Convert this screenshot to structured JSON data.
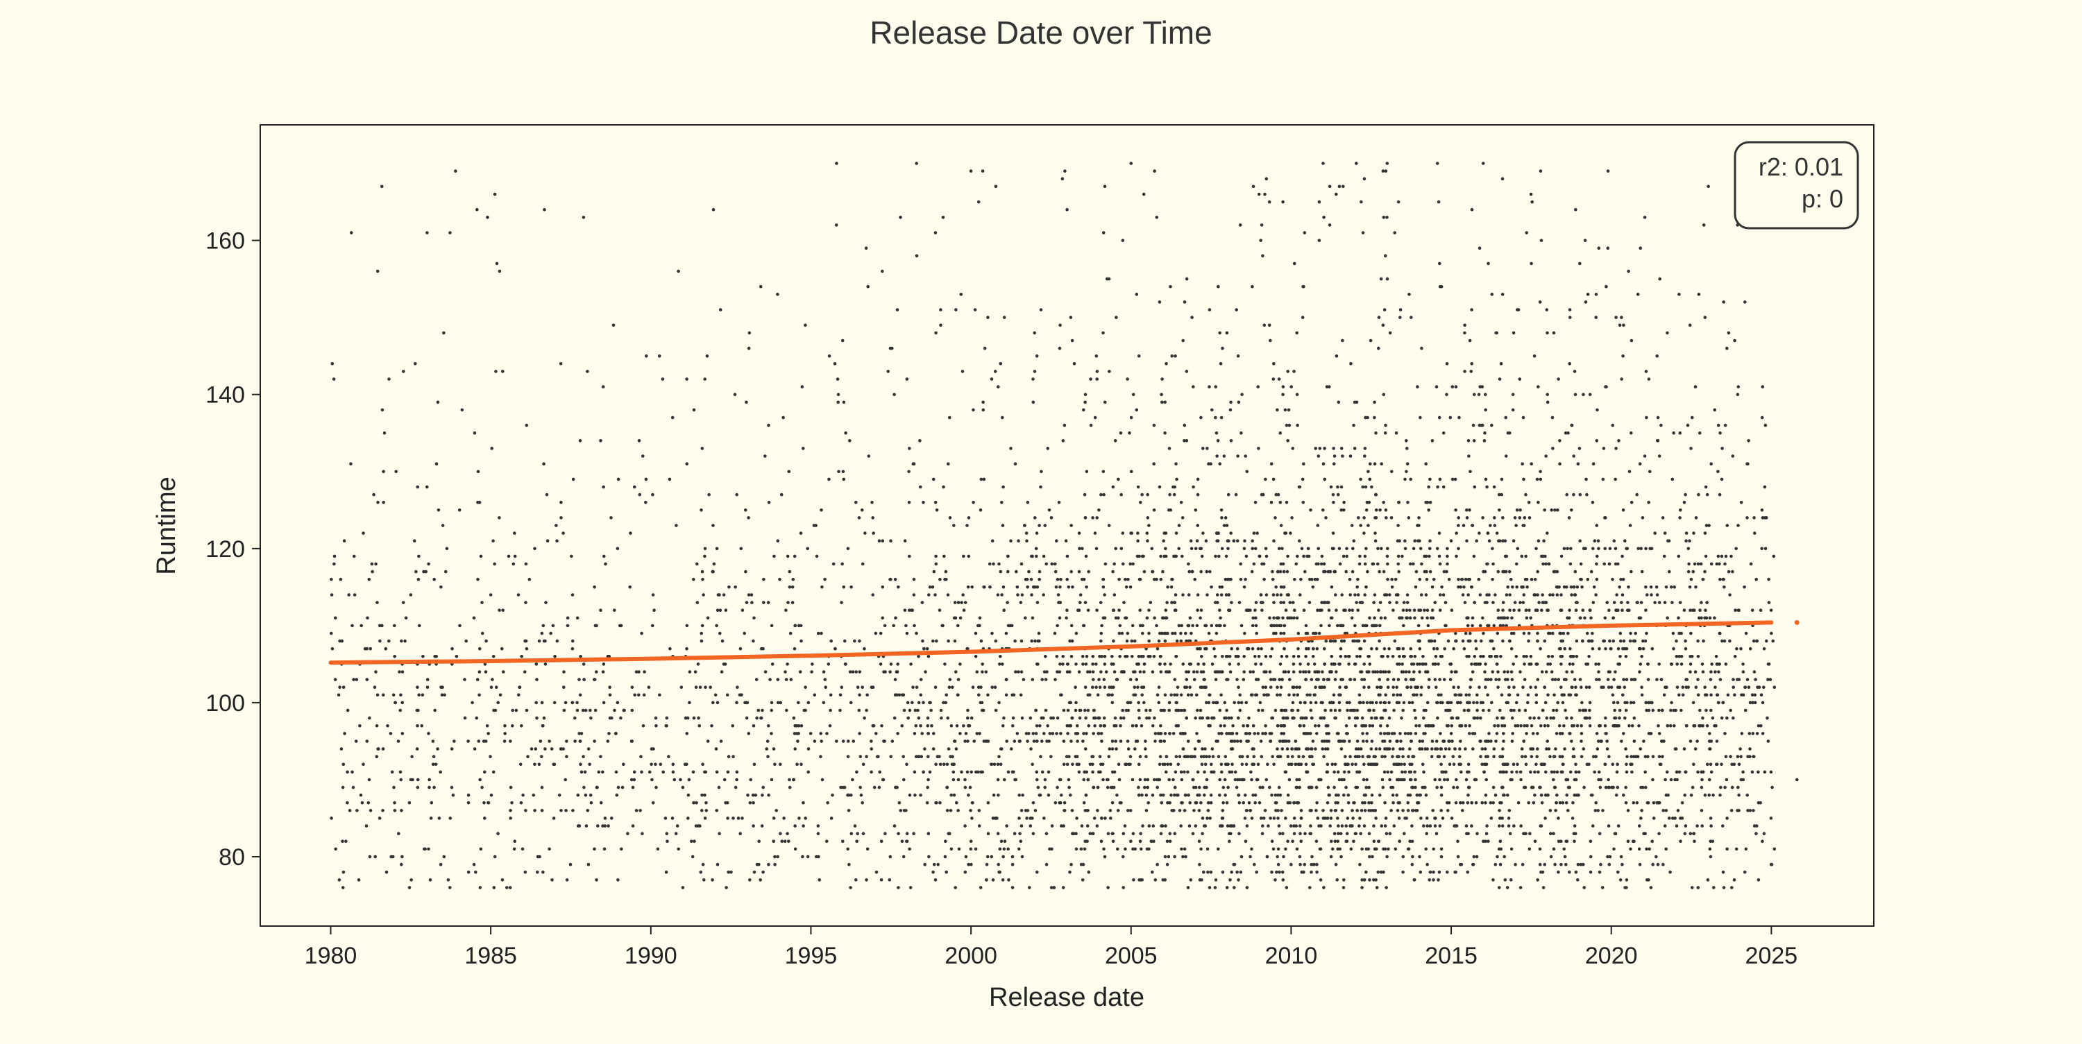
{
  "chart_data": {
    "type": "scatter",
    "title": "Release Date over Time",
    "xlabel": "Release date",
    "ylabel": "Runtime",
    "xlim": [
      1977.8,
      2028.2
    ],
    "ylim": [
      71,
      175
    ],
    "x_ticks": [
      1980,
      1985,
      1990,
      1995,
      2000,
      2005,
      2010,
      2015,
      2020,
      2025
    ],
    "x_tick_labels": [
      "1980",
      "1985",
      "1990",
      "1995",
      "2000",
      "2005",
      "2010",
      "2015",
      "2020",
      "2025"
    ],
    "y_ticks": [
      80,
      100,
      120,
      140,
      160
    ],
    "y_tick_labels": [
      "80",
      "100",
      "120",
      "140",
      "160"
    ],
    "grid": false,
    "series": [
      {
        "kind": "points",
        "color": "#333333",
        "x_range": [
          1980.0,
          2025.8
        ],
        "y_range": [
          76,
          170
        ],
        "approx_point_count": 6000,
        "density_peak_year": 2012,
        "density_peak_runtime": 93,
        "sample_points": [
          [
            1980.1,
            142
          ],
          [
            1981.6,
            167
          ],
          [
            1983.9,
            169
          ],
          [
            1984.9,
            163
          ],
          [
            1987.9,
            163
          ],
          [
            1995.8,
            170
          ],
          [
            1998.3,
            170
          ],
          [
            2000.0,
            169
          ],
          [
            2005.0,
            170
          ],
          [
            2011.0,
            170
          ],
          [
            2013.0,
            170
          ],
          [
            2016.0,
            170
          ],
          [
            2019.9,
            169
          ],
          [
            2025.8,
            90
          ],
          [
            1985.1,
            76
          ],
          [
            1991.0,
            76
          ],
          [
            2001.0,
            77
          ],
          [
            2008.0,
            76
          ],
          [
            2016.5,
            76
          ],
          [
            2023.2,
            76
          ]
        ]
      },
      {
        "kind": "trend",
        "color": "#f26522",
        "x": [
          1980.0,
          1985.0,
          1990.0,
          1995.0,
          2000.0,
          2005.0,
          2010.0,
          2015.0,
          2020.0,
          2025.8
        ],
        "y": [
          105.2,
          105.4,
          105.7,
          106.1,
          106.6,
          107.3,
          108.2,
          109.4,
          110.0,
          110.4
        ]
      }
    ],
    "stats": {
      "r2_label": "r2: 0.01",
      "p_label": "p: 0",
      "placement": "top-right"
    }
  }
}
